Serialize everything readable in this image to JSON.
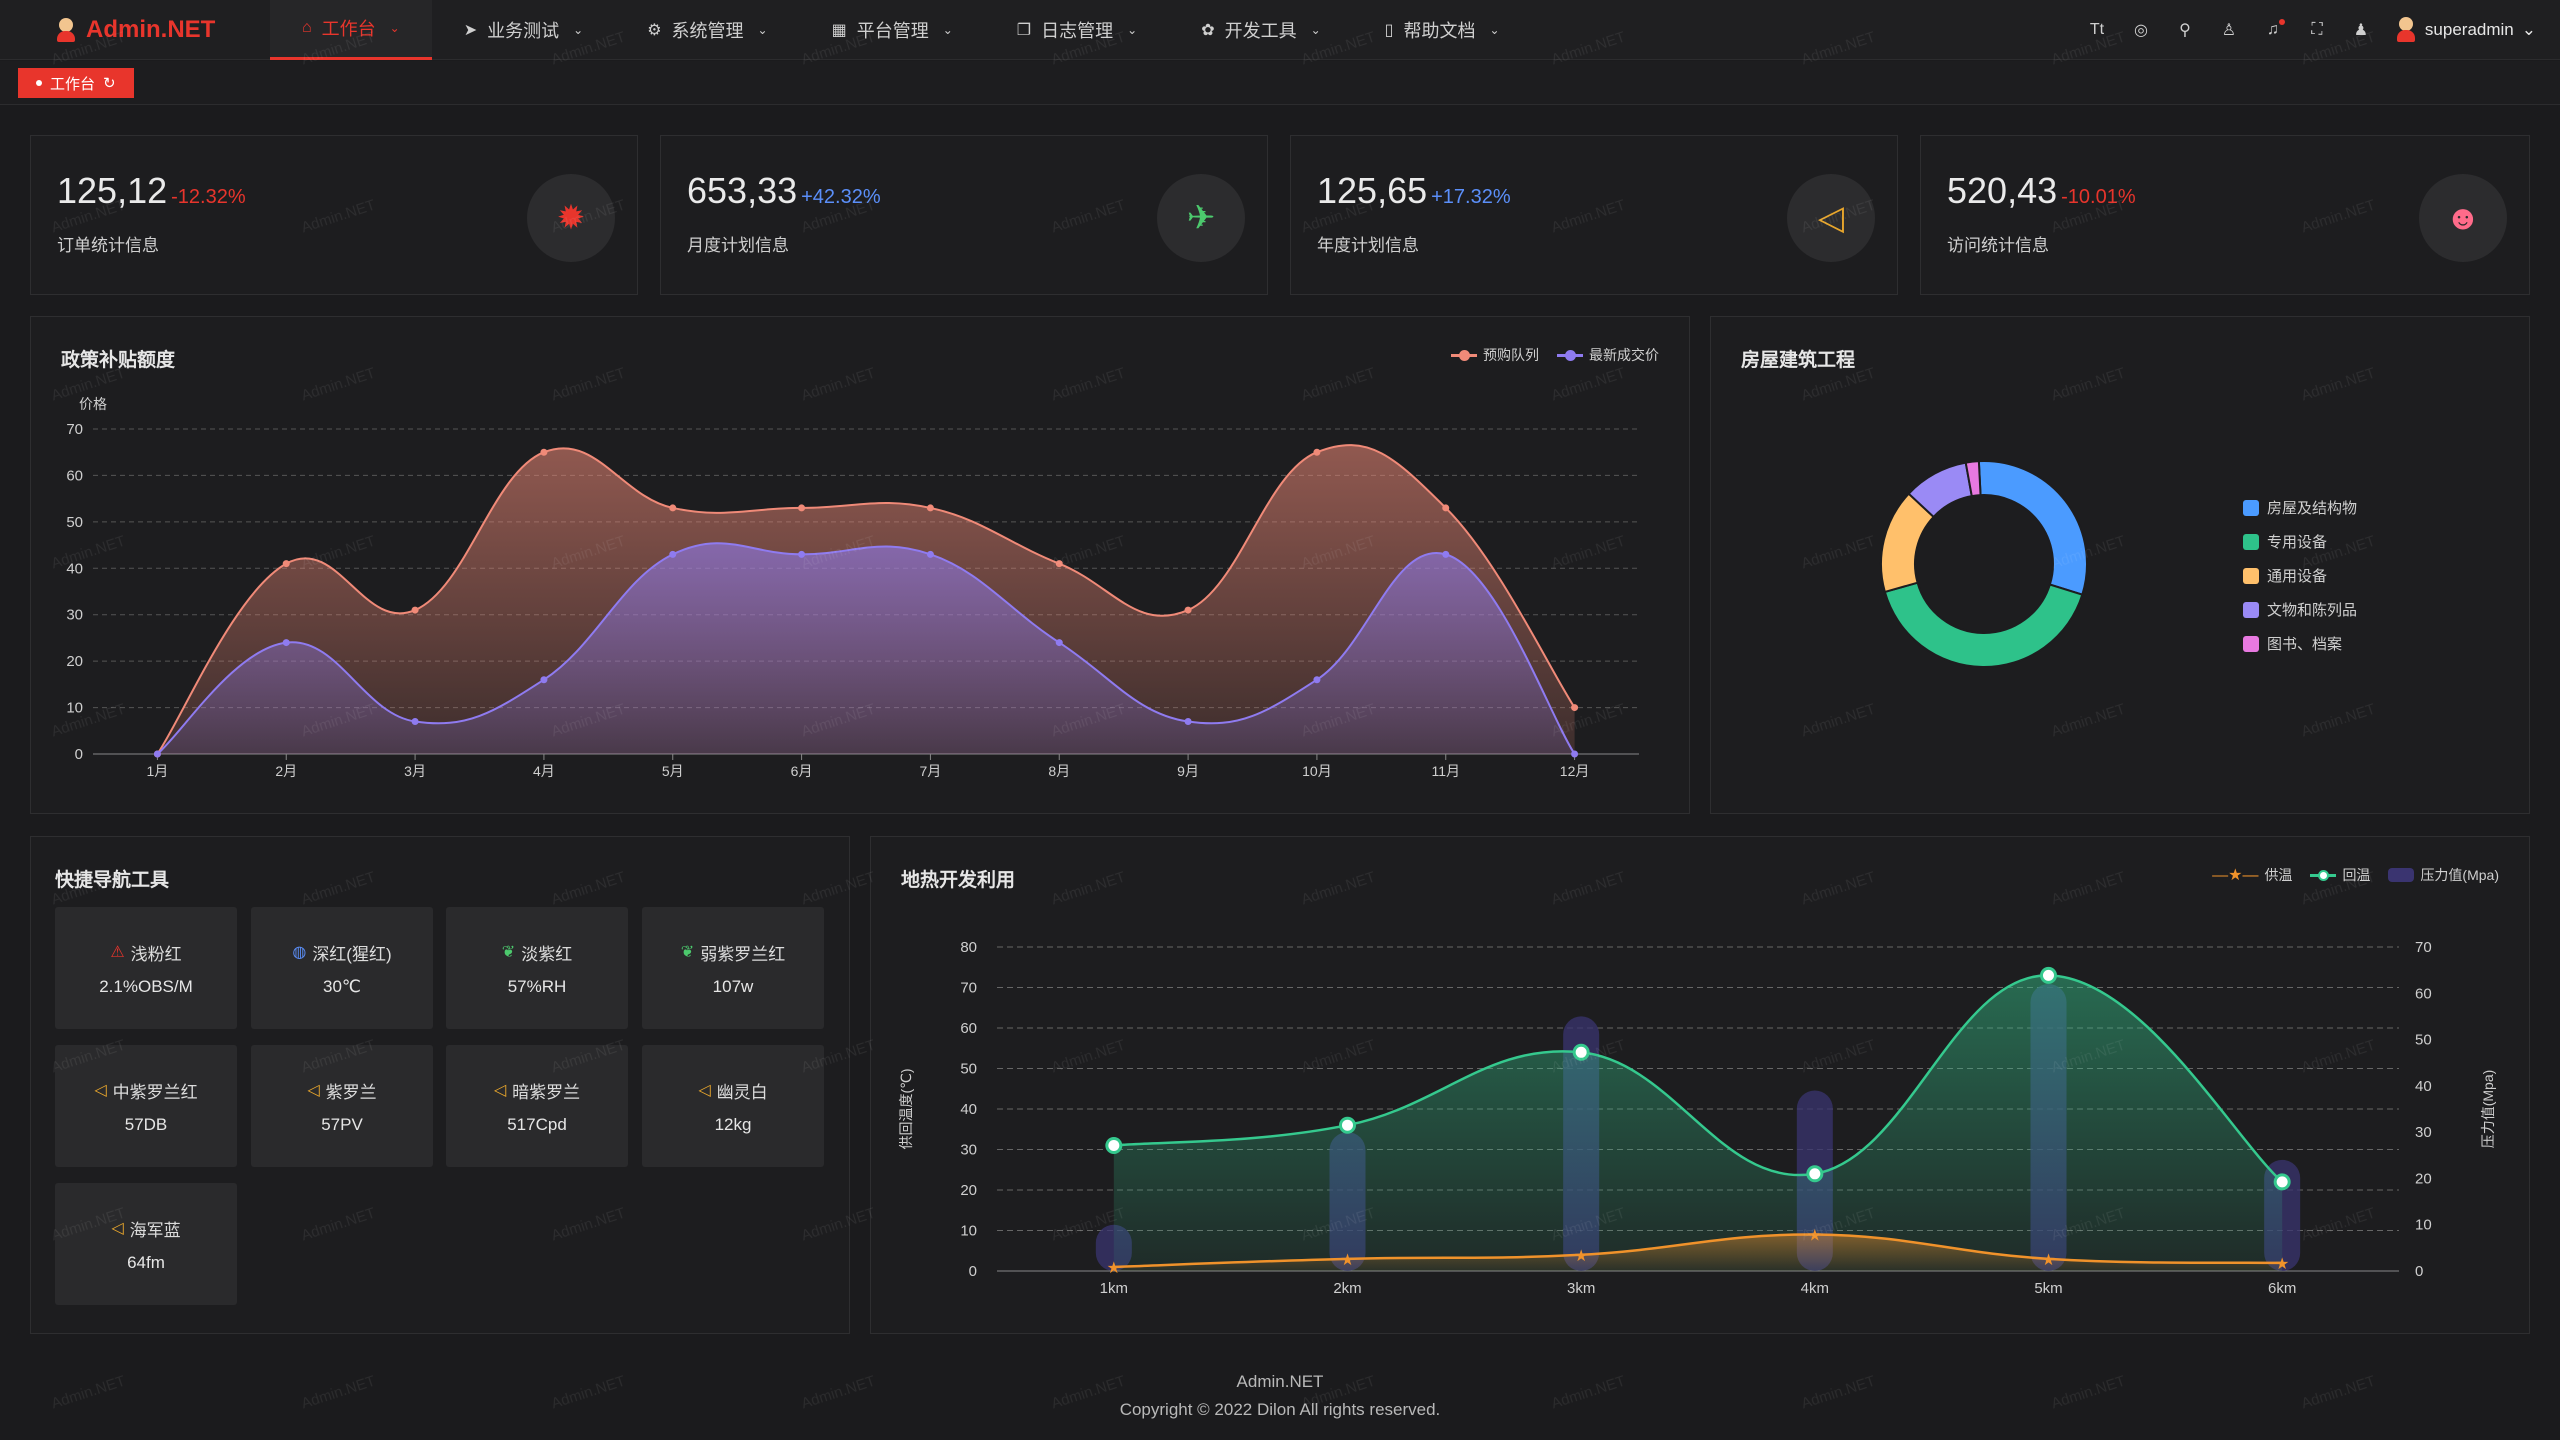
{
  "header": {
    "logo_text": "Admin.NET",
    "nav": [
      {
        "label": "工作台",
        "icon": "home-icon"
      },
      {
        "label": "业务测试",
        "icon": "send-icon"
      },
      {
        "label": "系统管理",
        "icon": "gear-icon"
      },
      {
        "label": "平台管理",
        "icon": "grid-icon"
      },
      {
        "label": "日志管理",
        "icon": "copy-icon"
      },
      {
        "label": "开发工具",
        "icon": "tool-icon"
      },
      {
        "label": "帮助文档",
        "icon": "book-icon"
      }
    ],
    "tools": [
      "font-size-icon",
      "theme-icon",
      "search-icon",
      "skin-icon",
      "bell-icon",
      "fullscreen-icon",
      "user-icon"
    ],
    "font_glyph": "Tt",
    "username": "superadmin"
  },
  "tabs": {
    "active_tab": "工作台"
  },
  "stats": [
    {
      "value": "125,12",
      "change": "-12.32%",
      "change_color": "#e8352c",
      "label": "订单统计信息",
      "icon": "order-icon",
      "icon_color": "#e8352c"
    },
    {
      "value": "653,33",
      "change": "+42.32%",
      "change_color": "#5b8ff9",
      "label": "月度计划信息",
      "icon": "map-icon",
      "icon_color": "#4cc96d"
    },
    {
      "value": "125,65",
      "change": "+17.32%",
      "change_color": "#5b8ff9",
      "label": "年度计划信息",
      "icon": "speaker-icon",
      "icon_color": "#e8a62c"
    },
    {
      "value": "520,43",
      "change": "-10.01%",
      "change_color": "#e8352c",
      "label": "访问统计信息",
      "icon": "github-icon",
      "icon_color": "#ff6b8a"
    }
  ],
  "policy_chart": {
    "title": "政策补贴额度",
    "chart_data": {
      "type": "area",
      "ylabel": "价格",
      "categories": [
        "1月",
        "2月",
        "3月",
        "4月",
        "5月",
        "6月",
        "7月",
        "8月",
        "9月",
        "10月",
        "11月",
        "12月"
      ],
      "ylim": [
        0,
        70
      ],
      "yticks": [
        "0",
        "10",
        "20",
        "30",
        "40",
        "50",
        "60",
        "70"
      ],
      "series": [
        {
          "name": "预购队列",
          "color": "#f08a78",
          "values": [
            0,
            41,
            31,
            65,
            53,
            53,
            53,
            41,
            31,
            65,
            53,
            10
          ]
        },
        {
          "name": "最新成交价",
          "color": "#8f7bf0",
          "values": [
            0,
            24,
            7,
            16,
            43,
            43,
            43,
            24,
            7,
            16,
            43,
            0
          ]
        }
      ]
    }
  },
  "house_chart": {
    "title": "房屋建筑工程",
    "chart_data": {
      "type": "pie",
      "categories": [
        "房屋及结构物",
        "专用设备",
        "通用设备",
        "文物和陈列品",
        "图书、档案"
      ],
      "colors": [
        "#4b9bff",
        "#2ec28a",
        "#ffc06b",
        "#9a8af5",
        "#e879e0"
      ],
      "values": [
        30,
        40,
        16,
        10,
        2
      ]
    }
  },
  "quick_nav": {
    "title": "快捷导航工具",
    "items": [
      {
        "label": "浅粉红",
        "value": "2.1%OBS/M",
        "icon": "alert-icon",
        "color": "#e8352c"
      },
      {
        "label": "深红(猩红)",
        "value": "30℃",
        "icon": "thermometer-icon",
        "color": "#5b8ff9"
      },
      {
        "label": "淡紫红",
        "value": "57%RH",
        "icon": "leaf-icon",
        "color": "#4cc96d"
      },
      {
        "label": "弱紫罗兰红",
        "value": "107w",
        "icon": "leaf-icon",
        "color": "#4cc96d"
      },
      {
        "label": "中紫罗兰红",
        "value": "57DB",
        "icon": "speaker-icon",
        "color": "#e8a62c"
      },
      {
        "label": "紫罗兰",
        "value": "57PV",
        "icon": "speaker-icon",
        "color": "#e8a62c"
      },
      {
        "label": "暗紫罗兰",
        "value": "517Cpd",
        "icon": "speaker-icon",
        "color": "#e8a62c"
      },
      {
        "label": "幽灵白",
        "value": "12kg",
        "icon": "speaker-icon",
        "color": "#e8a62c"
      },
      {
        "label": "海军蓝",
        "value": "64fm",
        "icon": "speaker-icon",
        "color": "#e8a62c"
      }
    ]
  },
  "geo_chart": {
    "title": "地热开发利用",
    "chart_data": {
      "type": "line",
      "categories": [
        "1km",
        "2km",
        "3km",
        "4km",
        "5km",
        "6km"
      ],
      "ylabel": "供回温度(℃)",
      "y2label": "压力值(Mpa)",
      "ylim": [
        0,
        80
      ],
      "y2lim": [
        0,
        70
      ],
      "yticks": [
        "0",
        "10",
        "20",
        "30",
        "40",
        "50",
        "60",
        "70",
        "80"
      ],
      "y2ticks": [
        "0",
        "10",
        "20",
        "30",
        "40",
        "50",
        "60",
        "70"
      ],
      "series": [
        {
          "name": "供温",
          "color": "#f0922b",
          "values": [
            1,
            3,
            4,
            9,
            3,
            2
          ]
        },
        {
          "name": "回温",
          "color": "#35c98e",
          "values": [
            31,
            36,
            54,
            24,
            73,
            22
          ]
        },
        {
          "name": "压力值(Mpa)",
          "color": "#3a3470",
          "values": [
            10,
            30,
            55,
            39,
            62,
            24
          ]
        }
      ]
    }
  },
  "footer": {
    "line1": "Admin.NET",
    "line2": "Copyright © 2022 Dilon All rights reserved."
  },
  "watermark": "Admin.NET"
}
